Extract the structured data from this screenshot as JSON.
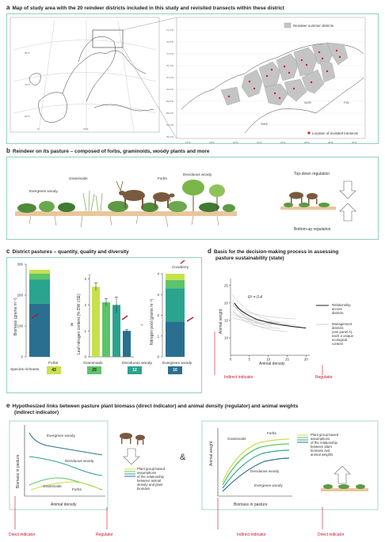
{
  "panels": {
    "a": {
      "letter": "a",
      "title": "Map of study area with the 20 reindeer districts included in this study and revisited transects within these district",
      "legend_summer": "Reindeer summer districts",
      "legend_transects": "Location of revisited transects",
      "lat_labels": [
        "71.0°N",
        "70.8°N",
        "70.6°N",
        "70.4°N",
        "70.2°N",
        "70.0°N",
        "69.8°N",
        "69.6°N",
        "69.4°N",
        "69.2°N"
      ],
      "lon_labels": [
        "16°E",
        "18°E",
        "20°E",
        "22°E",
        "24°E",
        "26°E",
        "28°E",
        "30°E"
      ],
      "country_labels": {
        "nor": "NOR",
        "fin": "FIN",
        "swe": "SWE"
      },
      "overview_lat": [
        "80°N",
        "70°N",
        "60°N"
      ],
      "overview_lon": [
        "0°",
        "20°E"
      ],
      "colors": {
        "district": "#c4c4c4",
        "transect": "#d42020"
      }
    },
    "b": {
      "letter": "b",
      "title": "Reindeer on its pasture – composed of forbs, graminoids, woody plants and more",
      "labels": {
        "evergreen": "Evergreen woody",
        "graminoids": "Graminoids",
        "forbs": "Forbs",
        "deciduous": "Deciduous woody"
      },
      "top_down": "Top-down regulation",
      "bottom_up": "Bottom-up regulation"
    },
    "c": {
      "letter": "c",
      "title": "District pastures – quantity, quality and diversity",
      "biomass_ylabel": "Biomass (grams m⁻²)",
      "biomass_ticks": [
        "0",
        "100",
        "200",
        "300"
      ],
      "nitrogen_content_ylabel": "Leaf nitrogen content (% DW ±SE)",
      "nitrogen_content_ticks": [
        "0",
        "1",
        "2",
        "3"
      ],
      "nitrogen_pool_ylabel": "Nitrogen pool (grams m⁻²)",
      "nitrogen_pool_ticks": [
        "0",
        "1",
        "2",
        "3",
        "4"
      ],
      "multiply": "x",
      "arrow": "→",
      "crowberry": "Crowberry",
      "species_richness_label": "Species richness",
      "groups": [
        "Forbs",
        "Graminoids",
        "Deciduous woody",
        "Evergreen woody"
      ],
      "richness": [
        "43",
        "29",
        "12",
        "10"
      ],
      "colors": [
        "#c8e04a",
        "#5cc46a",
        "#2aa38f",
        "#2a6f8f"
      ]
    },
    "d": {
      "letter": "d",
      "title_line1": "Basis for the decision-making process in assessing",
      "title_line2": "pasture sustainability (state)",
      "r2": "R² = 0.4",
      "ylabel": "Animal weight",
      "xlabel": "Animal density",
      "x_ticks": [
        "0",
        "5",
        "10",
        "15",
        "20"
      ],
      "y_ticks": [
        "10",
        "15",
        "20",
        "25"
      ],
      "legend_relationship": [
        "Relationship",
        "across",
        "districts"
      ],
      "legend_management": [
        "Management",
        "districts",
        "(see panel A),",
        "each a unique",
        "ecological",
        "context"
      ],
      "indirect_indicator": "Indirect indicator",
      "regulator": "Regulator"
    },
    "e": {
      "letter": "e",
      "title_line1": "Hypothesized links between pasture plant biomass (direct indicator) and animal density (regulator) and animal weights",
      "title_line2": "(indirect indicator)",
      "left": {
        "ylabel": "Biomass in pasture",
        "xlabel": "Animal density",
        "labels": {
          "evergreen": "Evergreen woody",
          "deciduous": "Deciduous woody",
          "graminoids": "Graminoids",
          "forbs": "Forbs"
        },
        "legend": [
          "Plant group-based",
          "assumptions",
          "of the relationship",
          "between animal",
          "density and plant",
          "biomass"
        ],
        "direct_indicator": "Direct indicator",
        "regulator": "Regulator"
      },
      "ampersand": "&",
      "right": {
        "ylabel": "Animal weight",
        "xlabel": "Biomass in pasture",
        "labels": {
          "forbs": "Forbs",
          "graminoids": "Graminoids",
          "deciduous": "Deciduous woody",
          "evergreen": "Evergreen woody"
        },
        "legend": [
          "Plant group-based",
          "assumptions",
          "of the relationship",
          "between plant",
          "biomass and",
          "animal weights"
        ],
        "indirect_indicator": "Indirect indicator",
        "direct_indicator": "Direct indicator"
      }
    }
  },
  "chart_data": [
    {
      "type": "bar",
      "title": "",
      "ylabel": "Biomass (grams m⁻²)",
      "categories": [
        "Total"
      ],
      "series": [
        {
          "name": "Evergreen woody",
          "values": [
            172
          ]
        },
        {
          "name": "Deciduous woody",
          "values": [
            78
          ]
        },
        {
          "name": "Graminoids",
          "values": [
            20
          ]
        },
        {
          "name": "Forbs",
          "values": [
            12
          ]
        }
      ],
      "ylim": [
        0,
        300
      ]
    },
    {
      "type": "bar",
      "title": "",
      "ylabel": "Leaf nitrogen content (% DW ±SE)",
      "categories": [
        "Forbs",
        "Graminoids",
        "Deciduous woody",
        "Evergreen woody"
      ],
      "values": [
        2.7,
        2.1,
        2.0,
        1.0
      ],
      "errors": [
        0.15,
        0.15,
        0.3,
        0.05
      ],
      "ylim": [
        0,
        3.2
      ]
    },
    {
      "type": "bar",
      "title": "",
      "ylabel": "Nitrogen pool (grams m⁻²)",
      "categories": [
        "Total"
      ],
      "series": [
        {
          "name": "Evergreen woody",
          "values": [
            1.7
          ]
        },
        {
          "name": "Deciduous woody",
          "values": [
            1.6
          ]
        },
        {
          "name": "Graminoids",
          "values": [
            0.4
          ]
        },
        {
          "name": "Forbs",
          "values": [
            0.3
          ]
        }
      ],
      "ylim": [
        0,
        4
      ]
    },
    {
      "type": "line",
      "title": "",
      "xlabel": "Animal density",
      "ylabel": "Animal weight",
      "series": [
        {
          "name": "Relationship across districts",
          "x": [
            1,
            2,
            3,
            5,
            7,
            10,
            13,
            16,
            20
          ],
          "y": [
            20,
            18.6,
            17.6,
            16.3,
            15.3,
            14.4,
            13.8,
            13.3,
            12.8
          ]
        }
      ],
      "xlim": [
        0,
        21
      ],
      "ylim": [
        5,
        27
      ]
    }
  ]
}
